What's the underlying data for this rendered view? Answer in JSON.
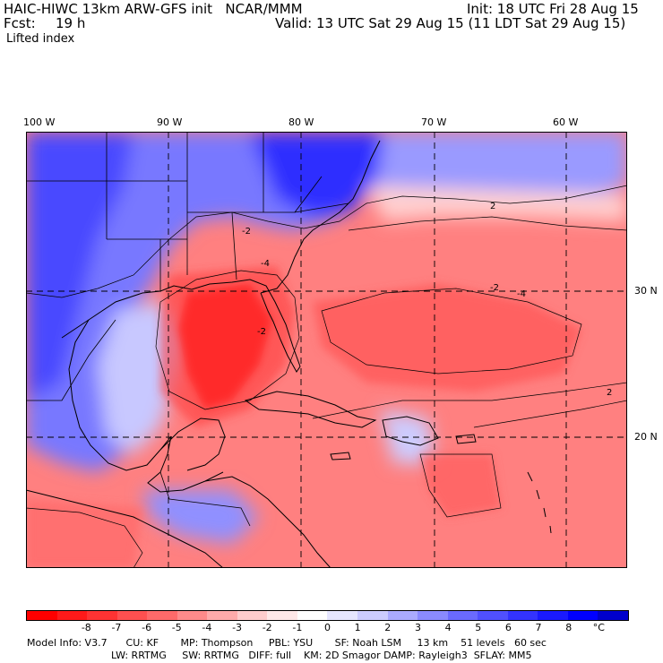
{
  "header": {
    "model_title": "HAIC-HIWC 13km ARW-GFS init   NCAR/MMM",
    "init": "Init: 18 UTC Fri 28 Aug 15",
    "fcst_label": "Fcst:",
    "fcst_value": "19 h",
    "valid": "Valid: 13 UTC Sat 29 Aug 15 (11 LDT Sat 29 Aug 15)",
    "field": "Lifted index"
  },
  "map": {
    "lon_labels": [
      "100 W",
      "90 W",
      "80 W",
      "70 W",
      "60 W"
    ],
    "lat_labels": [
      "30 N",
      "20 N"
    ],
    "contour_labels": [
      "2",
      "-2",
      "-4",
      "-2",
      "2",
      "-4",
      "-2"
    ]
  },
  "colorbar": {
    "colors": [
      "#ff0000",
      "#ff1a1a",
      "#ff3333",
      "#ff5050",
      "#ff6a6a",
      "#ff8a8a",
      "#ffaaaa",
      "#ffcccc",
      "#ffe8e8",
      "#ffffff",
      "#e6e6ff",
      "#ccccff",
      "#aaaaff",
      "#8a8aff",
      "#6a6aff",
      "#5050ff",
      "#3333ff",
      "#1a1aff",
      "#0000ff",
      "#0000cc"
    ],
    "ticks": [
      "-8",
      "-7",
      "-6",
      "-5",
      "-4",
      "-3",
      "-2",
      "-1",
      "0",
      "1",
      "2",
      "3",
      "4",
      "5",
      "6",
      "7",
      "8",
      "°C"
    ]
  },
  "model_info": {
    "line1": "Model Info: V3.7      CU: KF       MP: Thompson     PBL: YSU       SF: Noah LSM     13 km    51 levels   60 sec",
    "line2": "LW: RRTMG     SW: RRTMG   DIFF: full    KM: 2D Smagor DAMP: Rayleigh3  SFLAY: MM5"
  }
}
